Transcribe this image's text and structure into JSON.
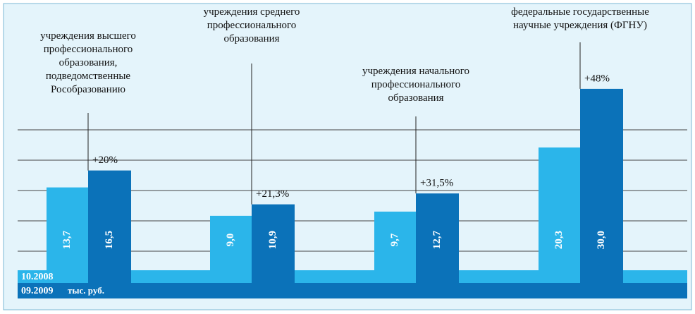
{
  "chart_data": {
    "type": "bar",
    "categories": [
      "учреждения высшего\nпрофессионального\nобразования,\nподведомственные\nРособразованию",
      "учреждения среднего\nпрофессионального\nобразования",
      "учреждения начального\nпрофессионального\nобразования",
      "федеральные государственные\nнаучные учреждения (ФГНУ)"
    ],
    "series": [
      {
        "name": "10.2008",
        "color": "#2bb5ea",
        "values": [
          13.7,
          9.0,
          9.7,
          20.3
        ],
        "value_labels": [
          "13,7",
          "9,0",
          "9,7",
          "20,3"
        ]
      },
      {
        "name": "09.2009",
        "color": "#0b72b9",
        "values": [
          16.5,
          10.9,
          12.7,
          30.0
        ],
        "value_labels": [
          "16,5",
          "10,9",
          "12,7",
          "30,0"
        ]
      }
    ],
    "annotations": [
      "+20%",
      "+21,3%",
      "+31,5%",
      "+48%"
    ],
    "unit": "тыс. руб.",
    "grid": true
  }
}
